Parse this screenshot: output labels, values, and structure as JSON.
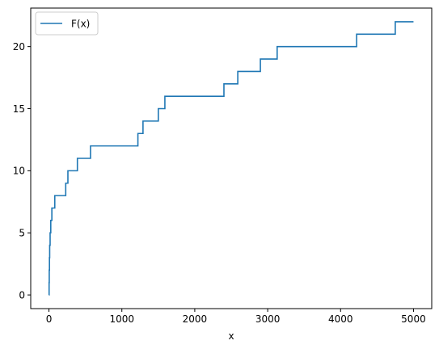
{
  "chart_data": {
    "type": "line",
    "title": "",
    "xlabel": "x",
    "ylabel": "",
    "xlim": [
      -250,
      5250
    ],
    "ylim": [
      -1.1,
      23.1
    ],
    "xticks": [
      0,
      1000,
      2000,
      3000,
      4000,
      5000
    ],
    "xtick_labels": [
      "0",
      "1000",
      "2000",
      "3000",
      "4000",
      "5000"
    ],
    "yticks": [
      0,
      5,
      10,
      15,
      20
    ],
    "ytick_labels": [
      "0",
      "5",
      "10",
      "15",
      "20"
    ],
    "grid": false,
    "legend": {
      "placement": "top-left",
      "entries": [
        "F(x)"
      ]
    },
    "series": [
      {
        "name": "F(x)",
        "color": "#1f77b4",
        "drawstyle": "steps-post",
        "points": [
          [
            0,
            0
          ],
          [
            2,
            1
          ],
          [
            4,
            2
          ],
          [
            7,
            3
          ],
          [
            10,
            4
          ],
          [
            16,
            5
          ],
          [
            25,
            6
          ],
          [
            40,
            7
          ],
          [
            80,
            8
          ],
          [
            230,
            9
          ],
          [
            260,
            10
          ],
          [
            390,
            11
          ],
          [
            570,
            12
          ],
          [
            1220,
            13
          ],
          [
            1290,
            14
          ],
          [
            1500,
            15
          ],
          [
            1590,
            16
          ],
          [
            2400,
            17
          ],
          [
            2590,
            18
          ],
          [
            2900,
            19
          ],
          [
            3130,
            20
          ],
          [
            4220,
            21
          ],
          [
            4750,
            22
          ],
          [
            5000,
            22
          ]
        ]
      }
    ]
  }
}
